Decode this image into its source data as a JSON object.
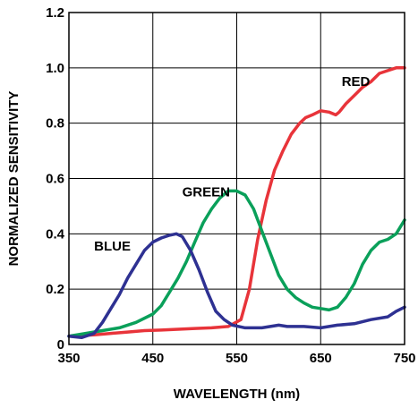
{
  "chart_data": {
    "type": "line",
    "title": "",
    "xlabel": "WAVELENGTH (nm)",
    "ylabel": "NORMALIZED SENSITIVITY",
    "xlim": [
      350,
      750
    ],
    "ylim": [
      0,
      1.2
    ],
    "x_ticks": [
      "350",
      "450",
      "550",
      "650",
      "750"
    ],
    "y_ticks": [
      "0",
      "0.2",
      "0.4",
      "0.6",
      "0.8",
      "1.0",
      "1.2"
    ],
    "grid": true,
    "series": [
      {
        "name": "RED",
        "color": "#e8343a",
        "points": [
          [
            350,
            0.03
          ],
          [
            380,
            0.035
          ],
          [
            400,
            0.04
          ],
          [
            420,
            0.045
          ],
          [
            440,
            0.05
          ],
          [
            460,
            0.052
          ],
          [
            480,
            0.055
          ],
          [
            500,
            0.058
          ],
          [
            520,
            0.06
          ],
          [
            540,
            0.065
          ],
          [
            555,
            0.09
          ],
          [
            565,
            0.2
          ],
          [
            575,
            0.38
          ],
          [
            585,
            0.52
          ],
          [
            595,
            0.63
          ],
          [
            605,
            0.7
          ],
          [
            615,
            0.76
          ],
          [
            625,
            0.8
          ],
          [
            632,
            0.82
          ],
          [
            640,
            0.83
          ],
          [
            650,
            0.845
          ],
          [
            660,
            0.84
          ],
          [
            668,
            0.83
          ],
          [
            672,
            0.84
          ],
          [
            680,
            0.87
          ],
          [
            690,
            0.9
          ],
          [
            700,
            0.93
          ],
          [
            710,
            0.95
          ],
          [
            720,
            0.98
          ],
          [
            730,
            0.99
          ],
          [
            740,
            1.0
          ],
          [
            750,
            1.0
          ]
        ]
      },
      {
        "name": "GREEN",
        "color": "#0aa05a",
        "points": [
          [
            350,
            0.03
          ],
          [
            370,
            0.04
          ],
          [
            390,
            0.05
          ],
          [
            410,
            0.06
          ],
          [
            430,
            0.08
          ],
          [
            450,
            0.11
          ],
          [
            460,
            0.14
          ],
          [
            470,
            0.19
          ],
          [
            480,
            0.24
          ],
          [
            490,
            0.3
          ],
          [
            500,
            0.37
          ],
          [
            510,
            0.44
          ],
          [
            520,
            0.49
          ],
          [
            530,
            0.53
          ],
          [
            540,
            0.555
          ],
          [
            550,
            0.555
          ],
          [
            560,
            0.54
          ],
          [
            570,
            0.49
          ],
          [
            580,
            0.41
          ],
          [
            590,
            0.33
          ],
          [
            600,
            0.25
          ],
          [
            610,
            0.2
          ],
          [
            620,
            0.17
          ],
          [
            630,
            0.15
          ],
          [
            640,
            0.135
          ],
          [
            650,
            0.13
          ],
          [
            660,
            0.125
          ],
          [
            670,
            0.135
          ],
          [
            680,
            0.17
          ],
          [
            690,
            0.22
          ],
          [
            700,
            0.29
          ],
          [
            710,
            0.34
          ],
          [
            720,
            0.37
          ],
          [
            730,
            0.38
          ],
          [
            740,
            0.4
          ],
          [
            750,
            0.45
          ]
        ]
      },
      {
        "name": "BLUE",
        "color": "#2e3192",
        "points": [
          [
            350,
            0.03
          ],
          [
            365,
            0.025
          ],
          [
            380,
            0.04
          ],
          [
            390,
            0.08
          ],
          [
            400,
            0.13
          ],
          [
            410,
            0.18
          ],
          [
            420,
            0.24
          ],
          [
            430,
            0.29
          ],
          [
            440,
            0.34
          ],
          [
            450,
            0.37
          ],
          [
            460,
            0.385
          ],
          [
            470,
            0.395
          ],
          [
            478,
            0.4
          ],
          [
            485,
            0.39
          ],
          [
            495,
            0.34
          ],
          [
            505,
            0.27
          ],
          [
            515,
            0.19
          ],
          [
            525,
            0.12
          ],
          [
            535,
            0.09
          ],
          [
            545,
            0.07
          ],
          [
            560,
            0.06
          ],
          [
            580,
            0.06
          ],
          [
            600,
            0.07
          ],
          [
            610,
            0.065
          ],
          [
            630,
            0.065
          ],
          [
            650,
            0.06
          ],
          [
            670,
            0.07
          ],
          [
            690,
            0.075
          ],
          [
            710,
            0.09
          ],
          [
            730,
            0.1
          ],
          [
            740,
            0.12
          ],
          [
            750,
            0.135
          ]
        ]
      }
    ],
    "annotations": [
      {
        "text": "RED",
        "x": 675,
        "y": 0.935
      },
      {
        "text": "GREEN",
        "x": 485,
        "y": 0.535
      },
      {
        "text": "BLUE",
        "x": 380,
        "y": 0.34
      }
    ]
  }
}
